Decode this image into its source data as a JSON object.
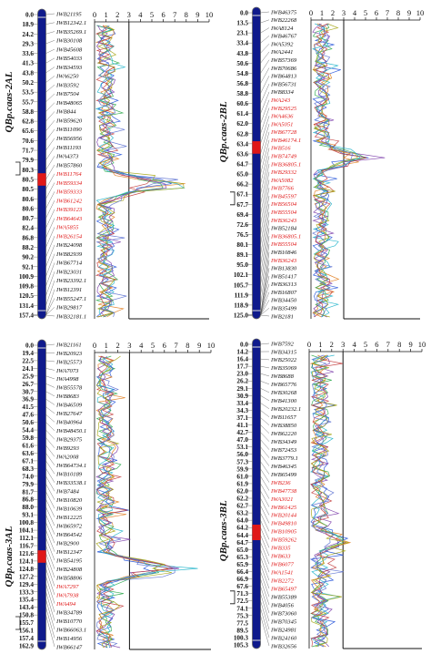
{
  "panels": [
    {
      "id": "2AL",
      "qtl_label": "QBp.caas-2AL",
      "axis_max": 10,
      "tick_labels": [
        "0",
        "1",
        "2",
        "3",
        "4",
        "5",
        "6",
        "7",
        "8",
        "9",
        "10"
      ],
      "threshold_lod": 3,
      "positions": [
        "0.0",
        "18.9",
        "24.2",
        "29.3",
        "33.6",
        "41.3",
        "43.8",
        "50.2",
        "53.5",
        "55.7",
        "58.8",
        "62.8",
        "65.6",
        "70.6",
        "71.7",
        "79.9",
        "80.3",
        "80.5",
        "80.5",
        "80.6",
        "80.6",
        "80.7",
        "82.4",
        "86.8",
        "88.2",
        "90.2",
        "92.1",
        "100.9",
        "109.8",
        "120.5",
        "131.4",
        "157.4"
      ],
      "markers": [
        "IWB21195",
        "IWB12342.1",
        "IWB35269.1",
        "IWB30108",
        "IWB45608",
        "IWB54033",
        "IWB34593",
        "IWA6250",
        "IWB3592",
        "IWB7504",
        "IWB48065",
        "IWB844",
        "IWB59620",
        "IWB11090",
        "IWB56956",
        "IWB11193",
        "IWA4373",
        "IWB57860",
        "IWB11764",
        "IWB59334",
        "IWB59333",
        "IWB61242",
        "IWB39123",
        "IWB64643",
        "IWA5855",
        "IWB26154",
        "IWB24098",
        "IWB82939",
        "IWB67714",
        "IWB23031",
        "IWB23392.1",
        "IWB12391",
        "IWB55247.1",
        "IWB29817",
        "IWB32181.1"
      ],
      "highlighted": [
        "IWB11764",
        "IWB59334",
        "IWB59333",
        "IWB61242",
        "IWB39123",
        "IWB64643",
        "IWA5855",
        "IWB26154"
      ]
    },
    {
      "id": "2BL",
      "qtl_label": "QBp.caas-2BL",
      "axis_max": 10,
      "tick_labels": [
        "0",
        "1",
        "2",
        "3",
        "4",
        "5",
        "6",
        "7",
        "8",
        "9",
        "10"
      ],
      "threshold_lod": 3,
      "positions": [
        "0.0",
        "13.5",
        "23.1",
        "33.4",
        "43.8",
        "50.6",
        "54.8",
        "56.8",
        "58.8",
        "60.6",
        "61.4",
        "62.0",
        "62.8",
        "63.4",
        "63.6",
        "64.7",
        "65.0",
        "66.2",
        "67.1",
        "67.7",
        "69.4",
        "72.6",
        "76.5",
        "80.1",
        "89.1",
        "95.0",
        "102.1",
        "105.7",
        "111.9",
        "118.9",
        "125.0"
      ],
      "markers": [
        "IWB46375",
        "IWB22268",
        "IWA8124",
        "IWB46767",
        "IWA5392",
        "IWA2441",
        "IWB57369",
        "IWB70686",
        "IWB64813",
        "IWB56731",
        "IWB8334",
        "IWA243",
        "IWB29525",
        "IWA4636",
        "IWA5051",
        "IWB67728",
        "IWB46174.1",
        "IWB516",
        "IWB74749",
        "IWB36805.1",
        "IWB29332",
        "IWA5082",
        "IWB7766",
        "IWB45597",
        "IWB56504",
        "IWB55504",
        "IWB36243",
        "IWB52184",
        "IWB36805.1",
        "IWB55504",
        "IWB10846",
        "IWB36243",
        "IWB13830",
        "IWB51417",
        "IWB36313",
        "IWB16807",
        "IWB34450",
        "IWB35499",
        "IWB2181"
      ],
      "highlighted": [
        "IWA243",
        "IWB29525",
        "IWA4636",
        "IWA5051",
        "IWB67728",
        "IWB46174.1",
        "IWB516",
        "IWB74749",
        "IWB36805.1",
        "IWB29332",
        "IWA5082",
        "IWB7766",
        "IWB45597",
        "IWB56504",
        "IWB55504",
        "IWB36243"
      ]
    },
    {
      "id": "3AL",
      "qtl_label": "QBp.caas-3AL",
      "axis_max": 10,
      "tick_labels": [
        "0",
        "1",
        "2",
        "3",
        "4",
        "5",
        "6",
        "7",
        "8",
        "9",
        "10"
      ],
      "threshold_lod": 3,
      "positions": [
        "0.0",
        "19.4",
        "22.5",
        "24.1",
        "25.9",
        "26.7",
        "30.7",
        "36.9",
        "41.5",
        "47.6",
        "50.6",
        "54.4",
        "59.8",
        "61.6",
        "63.6",
        "67.1",
        "68.3",
        "74.0",
        "79.9",
        "81.7",
        "86.8",
        "88.0",
        "93.1",
        "100.8",
        "104.1",
        "112.1",
        "116.7",
        "121.6",
        "124.1",
        "124.8",
        "127.2",
        "129.4",
        "133.3",
        "135.4",
        "143.4",
        "150.8",
        "155.7",
        "156.1",
        "157.4",
        "162.9"
      ],
      "markers": [
        "IWB21161",
        "IWB20923",
        "IWB25573",
        "IWA7073",
        "IWA4998",
        "IWB55578",
        "IWB8683",
        "IWB46509",
        "IWB27647",
        "IWB40964",
        "IWB48450.1",
        "IWB29375",
        "IWB9293",
        "IWA2008",
        "IWB64734.1",
        "IWB10189",
        "IWB33538.1",
        "IWB7484",
        "IWB10820",
        "IWB10639",
        "IWB12225",
        "IWB65972",
        "IWB64542",
        "IWB2900",
        "IWB12347",
        "IWB54195",
        "IWB24808",
        "IWB58806",
        "IWA7297",
        "IWA7938",
        "IWA494",
        "IWB34789",
        "IWB10770",
        "IWB66063.1",
        "IWB14956",
        "IWB66147"
      ],
      "highlighted": [
        "IWA7297",
        "IWA7938",
        "IWA494"
      ]
    },
    {
      "id": "3BL",
      "qtl_label": "QBp.caas-3BL",
      "axis_max": 10,
      "tick_labels": [
        "0",
        "1",
        "2",
        "3",
        "4",
        "5",
        "6",
        "7",
        "8",
        "9",
        "10"
      ],
      "threshold_lod": 3,
      "positions": [
        "0.0",
        "14.2",
        "16.4",
        "17.7",
        "23.0",
        "26.2",
        "29.1",
        "30.9",
        "33.4",
        "34.3",
        "37.1",
        "41.1",
        "42.7",
        "47.0",
        "53.1",
        "56.0",
        "57.3",
        "59.9",
        "61.0",
        "61.9",
        "62.0",
        "62.2",
        "62.7",
        "63.2",
        "64.0",
        "64.2",
        "64.4",
        "64.7",
        "65.0",
        "65.3",
        "65.9",
        "66.4",
        "66.9",
        "67.6",
        "71.3",
        "72.5",
        "74.1",
        "75.3",
        "77.5",
        "89.5",
        "100.3",
        "105.3"
      ],
      "markers": [
        "IWB7592",
        "IWB34315",
        "IWB25022",
        "IWB35069",
        "IWB8688",
        "IWB65776",
        "IWB30268",
        "IWB41300",
        "IWB20232.1",
        "IWB11657",
        "IWB38850",
        "IWB62220",
        "IWB34349",
        "IWB72453",
        "IWB3779.1",
        "IWB46345",
        "IWB65499",
        "IWB236",
        "IWB47738",
        "IWA3021",
        "IWB61425",
        "IWB20144",
        "IWB49810",
        "IWB10905",
        "IWB59262",
        "IWB335",
        "IWB633",
        "IWB6077",
        "IWA1541",
        "IWB2272",
        "IWB65497",
        "IWB55389",
        "IWB4056",
        "IWB73060",
        "IWB70345",
        "IWB24981",
        "IWB24160",
        "IWB32656"
      ],
      "highlighted": [
        "IWB236",
        "IWB47738",
        "IWA3021",
        "IWB61425",
        "IWB20144",
        "IWB49810",
        "IWB10905",
        "IWB59262",
        "IWB335",
        "IWB633",
        "IWB6077",
        "IWA1541",
        "IWB2272",
        "IWB65497"
      ]
    }
  ],
  "colors": {
    "chromosome": "#0f1a8c",
    "qtl_region": "#e01818",
    "highlight_text": "#e01818",
    "marker_text": "#111111",
    "threshold": "#111111",
    "curves": [
      "#1f4fd8",
      "#e07a1a",
      "#2aa84a",
      "#7a3aa8",
      "#1db2c9",
      "#c23a3a",
      "#a3a30f",
      "#5a6fd0"
    ]
  }
}
